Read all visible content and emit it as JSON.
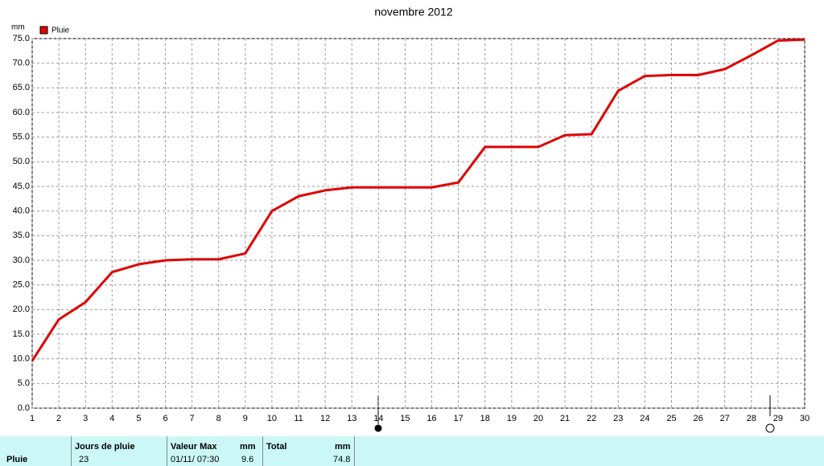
{
  "chart_data": {
    "type": "line",
    "title": "novembre 2012",
    "y_unit": "mm",
    "x": [
      1,
      2,
      3,
      4,
      5,
      6,
      7,
      8,
      9,
      10,
      11,
      12,
      13,
      14,
      15,
      16,
      17,
      18,
      19,
      20,
      21,
      22,
      23,
      24,
      25,
      26,
      27,
      28,
      29,
      30
    ],
    "series": [
      {
        "name": "Pluie",
        "color": "#e00000",
        "values": [
          9.6,
          18.0,
          21.5,
          27.6,
          29.2,
          30.0,
          30.2,
          30.2,
          31.4,
          40.0,
          43.0,
          44.2,
          44.8,
          44.8,
          44.8,
          44.8,
          45.8,
          53.0,
          53.0,
          53.0,
          55.4,
          55.6,
          64.4,
          67.4,
          67.6,
          67.6,
          68.8,
          71.6,
          74.6,
          74.8
        ]
      }
    ],
    "xlim": [
      1,
      30
    ],
    "xticks": [
      1,
      2,
      3,
      4,
      5,
      6,
      7,
      8,
      9,
      10,
      11,
      12,
      13,
      14,
      15,
      16,
      17,
      18,
      19,
      20,
      21,
      22,
      23,
      24,
      25,
      26,
      27,
      28,
      29,
      30
    ],
    "ylim": [
      0,
      75
    ],
    "yticks": [
      {
        "value": 0,
        "label": "0.0"
      },
      {
        "value": 5,
        "label": "5.0"
      },
      {
        "value": 10,
        "label": "10.0"
      },
      {
        "value": 15,
        "label": "15.0"
      },
      {
        "value": 20,
        "label": "20.0"
      },
      {
        "value": 25,
        "label": "25.0"
      },
      {
        "value": 30,
        "label": "30.0"
      },
      {
        "value": 35,
        "label": "35.0"
      },
      {
        "value": 40,
        "label": "40.0"
      },
      {
        "value": 45,
        "label": "45.0"
      },
      {
        "value": 50,
        "label": "50.0"
      },
      {
        "value": 55,
        "label": "55.0"
      },
      {
        "value": 60,
        "label": "60.0"
      },
      {
        "value": 65,
        "label": "65.0"
      },
      {
        "value": 70,
        "label": "70.0"
      },
      {
        "value": 75,
        "label": "75.0"
      }
    ],
    "grid": true
  },
  "table": {
    "header": [
      "Jours de pluie",
      "Valeur Max",
      "mm",
      "Total",
      "mm"
    ],
    "rows": [
      [
        "Pluie",
        23,
        "01/11/ 07:30",
        9.6,
        74.8
      ]
    ]
  }
}
